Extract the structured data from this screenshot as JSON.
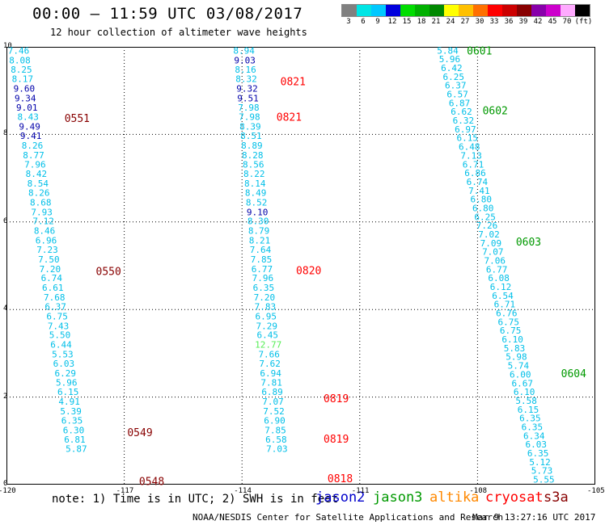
{
  "title": "00:00 – 11:59 UTC 03/08/2017",
  "subtitle": "12 hour collection of altimeter wave heights",
  "color_scale": {
    "labels": [
      "3",
      "6",
      "9",
      "12",
      "15",
      "18",
      "21",
      "24",
      "27",
      "30",
      "33",
      "36",
      "39",
      "42",
      "45",
      "70",
      "(ft)"
    ],
    "colors": [
      "#808080",
      "#00e5e5",
      "#00c8ff",
      "#0000dd",
      "#00dd00",
      "#00b000",
      "#008800",
      "#ffff00",
      "#ffc000",
      "#ff7000",
      "#ff0000",
      "#cc0000",
      "#880000",
      "#8800aa",
      "#cc00cc",
      "#ffaaff",
      "#000000"
    ]
  },
  "note": "note: 1) Time is in UTC; 2) SWH is in feet",
  "missions": [
    {
      "name": "jason2",
      "color": "#0000cc"
    },
    {
      "name": "jason3",
      "color": "#009900"
    },
    {
      "name": "altika",
      "color": "#ff8800"
    },
    {
      "name": "cryosat",
      "color": "#ff0000"
    },
    {
      "name": "s3a",
      "color": "#880000"
    }
  ],
  "credit": "NOAA/NESDIS Center for Satellite Applications and Research",
  "timestamp": "Mar  9 13:27:16 UTC 2017",
  "chart_data": {
    "type": "scatter",
    "title": "00:00 – 11:59 UTC 03/08/2017",
    "subtitle": "12 hour collection of altimeter wave heights",
    "xlabel": "",
    "ylabel": "",
    "xlim": [
      -120,
      -105
    ],
    "ylim": [
      0,
      10
    ],
    "x_ticks": [
      "-120",
      "-117",
      "-114",
      "-111",
      "-108",
      "-105"
    ],
    "y_ticks": [
      "0",
      "2",
      "4",
      "6",
      "8",
      "10"
    ],
    "grid": true,
    "units": "ft",
    "tracks": [
      {
        "color": "#880000",
        "points": [
          {
            "lon": -119.69,
            "lat": 9.92,
            "v": "7.46"
          },
          {
            "lon": -119.66,
            "lat": 9.7,
            "v": "8.08"
          },
          {
            "lon": -119.62,
            "lat": 9.48,
            "v": "8.25"
          },
          {
            "lon": -119.59,
            "lat": 9.27,
            "v": "8.17"
          },
          {
            "lon": -119.55,
            "lat": 9.05,
            "v": "9.60"
          },
          {
            "lon": -119.52,
            "lat": 8.83,
            "v": "9.34"
          },
          {
            "lon": -119.48,
            "lat": 8.62,
            "v": "9.01"
          },
          {
            "lon": -119.45,
            "lat": 8.4,
            "v": "8.43"
          },
          {
            "lon": -119.41,
            "lat": 8.18,
            "v": "9.49"
          },
          {
            "lon": -119.38,
            "lat": 7.97,
            "v": "9.41"
          },
          {
            "lon": -119.34,
            "lat": 7.75,
            "v": "8.26"
          },
          {
            "lon": -119.31,
            "lat": 7.53,
            "v": "8.77"
          },
          {
            "lon": -119.27,
            "lat": 7.32,
            "v": "7.96"
          },
          {
            "lon": -119.24,
            "lat": 7.1,
            "v": "8.42"
          },
          {
            "lon": -119.2,
            "lat": 6.88,
            "v": "8.54"
          },
          {
            "lon": -119.17,
            "lat": 6.67,
            "v": "8.26"
          },
          {
            "lon": -119.13,
            "lat": 6.45,
            "v": "8.68"
          },
          {
            "lon": -119.1,
            "lat": 6.23,
            "v": "7.93"
          },
          {
            "lon": -119.06,
            "lat": 6.02,
            "v": "7.12"
          },
          {
            "lon": -119.03,
            "lat": 5.8,
            "v": "8.46"
          },
          {
            "lon": -118.99,
            "lat": 5.58,
            "v": "6.96"
          },
          {
            "lon": -118.96,
            "lat": 5.37,
            "v": "7.23"
          },
          {
            "lon": -118.92,
            "lat": 5.15,
            "v": "7.50"
          },
          {
            "lon": -118.89,
            "lat": 4.93,
            "v": "7.20"
          },
          {
            "lon": -118.85,
            "lat": 4.72,
            "v": "6.74"
          },
          {
            "lon": -118.82,
            "lat": 4.5,
            "v": "6.61"
          },
          {
            "lon": -118.78,
            "lat": 4.28,
            "v": "7.68"
          },
          {
            "lon": -118.75,
            "lat": 4.07,
            "v": "6.37"
          },
          {
            "lon": -118.71,
            "lat": 3.85,
            "v": "6.75"
          },
          {
            "lon": -118.68,
            "lat": 3.63,
            "v": "7.43"
          },
          {
            "lon": -118.64,
            "lat": 3.42,
            "v": "5.50"
          },
          {
            "lon": -118.61,
            "lat": 3.2,
            "v": "6.44"
          },
          {
            "lon": -118.57,
            "lat": 2.98,
            "v": "5.53"
          },
          {
            "lon": -118.54,
            "lat": 2.77,
            "v": "6.03"
          },
          {
            "lon": -118.5,
            "lat": 2.55,
            "v": "6.29"
          },
          {
            "lon": -118.47,
            "lat": 2.33,
            "v": "5.96"
          },
          {
            "lon": -118.43,
            "lat": 2.12,
            "v": "6.15"
          },
          {
            "lon": -118.4,
            "lat": 1.9,
            "v": "4.91"
          },
          {
            "lon": -118.36,
            "lat": 1.68,
            "v": "5.39"
          },
          {
            "lon": -118.33,
            "lat": 1.47,
            "v": "6.35"
          },
          {
            "lon": -118.29,
            "lat": 1.25,
            "v": "6.30"
          },
          {
            "lon": -118.26,
            "lat": 1.03,
            "v": "6.81"
          },
          {
            "lon": -118.22,
            "lat": 0.82,
            "v": "5.87"
          }
        ],
        "time_labels": [
          {
            "lon": -118.2,
            "lat": 8.38,
            "text": "0551"
          },
          {
            "lon": -117.4,
            "lat": 4.88,
            "text": "0550"
          },
          {
            "lon": -116.6,
            "lat": 1.2,
            "text": "0549"
          },
          {
            "lon": -116.3,
            "lat": 0.08,
            "text": "0548"
          }
        ]
      },
      {
        "color": "#ff0000",
        "points": [
          {
            "lon": -113.95,
            "lat": 9.92,
            "v": "8.94"
          },
          {
            "lon": -113.93,
            "lat": 9.7,
            "v": "9.03"
          },
          {
            "lon": -113.91,
            "lat": 9.48,
            "v": "8.16"
          },
          {
            "lon": -113.89,
            "lat": 9.27,
            "v": "8.32"
          },
          {
            "lon": -113.87,
            "lat": 9.05,
            "v": "9.32"
          },
          {
            "lon": -113.85,
            "lat": 8.83,
            "v": "9.51"
          },
          {
            "lon": -113.83,
            "lat": 8.62,
            "v": "7.98"
          },
          {
            "lon": -113.81,
            "lat": 8.4,
            "v": "7.98"
          },
          {
            "lon": -113.79,
            "lat": 8.18,
            "v": "8.39"
          },
          {
            "lon": -113.77,
            "lat": 7.97,
            "v": "8.51"
          },
          {
            "lon": -113.75,
            "lat": 7.75,
            "v": "8.89"
          },
          {
            "lon": -113.73,
            "lat": 7.53,
            "v": "8.28"
          },
          {
            "lon": -113.71,
            "lat": 7.32,
            "v": "8.56"
          },
          {
            "lon": -113.69,
            "lat": 7.1,
            "v": "8.22"
          },
          {
            "lon": -113.67,
            "lat": 6.88,
            "v": "8.14"
          },
          {
            "lon": -113.65,
            "lat": 6.67,
            "v": "8.49"
          },
          {
            "lon": -113.63,
            "lat": 6.45,
            "v": "8.52"
          },
          {
            "lon": -113.61,
            "lat": 6.23,
            "v": "9.10"
          },
          {
            "lon": -113.59,
            "lat": 6.02,
            "v": "8.30"
          },
          {
            "lon": -113.57,
            "lat": 5.8,
            "v": "8.79"
          },
          {
            "lon": -113.55,
            "lat": 5.58,
            "v": "8.21"
          },
          {
            "lon": -113.53,
            "lat": 5.37,
            "v": "7.64"
          },
          {
            "lon": -113.51,
            "lat": 5.15,
            "v": "7.85"
          },
          {
            "lon": -113.49,
            "lat": 4.93,
            "v": "6.77"
          },
          {
            "lon": -113.47,
            "lat": 4.72,
            "v": "7.96"
          },
          {
            "lon": -113.45,
            "lat": 4.5,
            "v": "6.35"
          },
          {
            "lon": -113.43,
            "lat": 4.28,
            "v": "7.20"
          },
          {
            "lon": -113.41,
            "lat": 4.07,
            "v": "7.83"
          },
          {
            "lon": -113.39,
            "lat": 3.85,
            "v": "6.95"
          },
          {
            "lon": -113.37,
            "lat": 3.63,
            "v": "7.29"
          },
          {
            "lon": -113.35,
            "lat": 3.42,
            "v": "6.45"
          },
          {
            "lon": -113.33,
            "lat": 3.2,
            "v": "12.77",
            "c": "#55ee55"
          },
          {
            "lon": -113.31,
            "lat": 2.98,
            "v": "7.66"
          },
          {
            "lon": -113.29,
            "lat": 2.77,
            "v": "7.62"
          },
          {
            "lon": -113.27,
            "lat": 2.55,
            "v": "6.94"
          },
          {
            "lon": -113.25,
            "lat": 2.33,
            "v": "7.81"
          },
          {
            "lon": -113.23,
            "lat": 2.12,
            "v": "6.89"
          },
          {
            "lon": -113.21,
            "lat": 1.9,
            "v": "7.07"
          },
          {
            "lon": -113.19,
            "lat": 1.68,
            "v": "7.52"
          },
          {
            "lon": -113.17,
            "lat": 1.47,
            "v": "6.90"
          },
          {
            "lon": -113.15,
            "lat": 1.25,
            "v": "7.85"
          },
          {
            "lon": -113.13,
            "lat": 1.03,
            "v": "6.58"
          },
          {
            "lon": -113.11,
            "lat": 0.82,
            "v": "7.03"
          }
        ],
        "time_labels": [
          {
            "lon": -112.7,
            "lat": 9.22,
            "text": "0821"
          },
          {
            "lon": -112.8,
            "lat": 8.4,
            "text": "0821"
          },
          {
            "lon": -112.3,
            "lat": 4.9,
            "text": "0820"
          },
          {
            "lon": -111.6,
            "lat": 1.97,
            "text": "0819"
          },
          {
            "lon": -111.6,
            "lat": 1.05,
            "text": "0819"
          },
          {
            "lon": -111.5,
            "lat": 0.15,
            "text": "0818"
          }
        ]
      },
      {
        "color": "#009900",
        "points": [
          {
            "lon": -108.76,
            "lat": 9.92,
            "v": "5.84"
          },
          {
            "lon": -108.71,
            "lat": 9.72,
            "v": "5.96"
          },
          {
            "lon": -108.66,
            "lat": 9.52,
            "v": "6.42"
          },
          {
            "lon": -108.61,
            "lat": 9.32,
            "v": "6.25"
          },
          {
            "lon": -108.56,
            "lat": 9.12,
            "v": "6.37"
          },
          {
            "lon": -108.51,
            "lat": 8.92,
            "v": "6.57"
          },
          {
            "lon": -108.46,
            "lat": 8.72,
            "v": "6.87"
          },
          {
            "lon": -108.41,
            "lat": 8.52,
            "v": "6.62"
          },
          {
            "lon": -108.36,
            "lat": 8.32,
            "v": "6.32"
          },
          {
            "lon": -108.31,
            "lat": 8.12,
            "v": "6.97"
          },
          {
            "lon": -108.26,
            "lat": 7.92,
            "v": "6.15"
          },
          {
            "lon": -108.21,
            "lat": 7.72,
            "v": "6.48"
          },
          {
            "lon": -108.16,
            "lat": 7.52,
            "v": "7.13"
          },
          {
            "lon": -108.11,
            "lat": 7.32,
            "v": "6.71"
          },
          {
            "lon": -108.06,
            "lat": 7.12,
            "v": "6.86"
          },
          {
            "lon": -108.01,
            "lat": 6.92,
            "v": "6.74"
          },
          {
            "lon": -107.96,
            "lat": 6.72,
            "v": "7.41"
          },
          {
            "lon": -107.91,
            "lat": 6.52,
            "v": "6.80"
          },
          {
            "lon": -107.86,
            "lat": 6.32,
            "v": "6.80"
          },
          {
            "lon": -107.81,
            "lat": 6.12,
            "v": "6.25"
          },
          {
            "lon": -107.76,
            "lat": 5.92,
            "v": "7.26"
          },
          {
            "lon": -107.71,
            "lat": 5.72,
            "v": "7.02"
          },
          {
            "lon": -107.66,
            "lat": 5.52,
            "v": "7.09"
          },
          {
            "lon": -107.61,
            "lat": 5.32,
            "v": "7.07"
          },
          {
            "lon": -107.56,
            "lat": 5.12,
            "v": "7.06"
          },
          {
            "lon": -107.51,
            "lat": 4.92,
            "v": "6.77"
          },
          {
            "lon": -107.46,
            "lat": 4.72,
            "v": "6.08"
          },
          {
            "lon": -107.41,
            "lat": 4.52,
            "v": "6.12"
          },
          {
            "lon": -107.36,
            "lat": 4.32,
            "v": "6.54"
          },
          {
            "lon": -107.31,
            "lat": 4.12,
            "v": "6.71"
          },
          {
            "lon": -107.26,
            "lat": 3.92,
            "v": "6.76"
          },
          {
            "lon": -107.21,
            "lat": 3.72,
            "v": "6.75"
          },
          {
            "lon": -107.16,
            "lat": 3.52,
            "v": "6.75"
          },
          {
            "lon": -107.11,
            "lat": 3.32,
            "v": "6.10"
          },
          {
            "lon": -107.06,
            "lat": 3.12,
            "v": "5.83"
          },
          {
            "lon": -107.01,
            "lat": 2.92,
            "v": "5.98"
          },
          {
            "lon": -106.96,
            "lat": 2.72,
            "v": "5.74"
          },
          {
            "lon": -106.91,
            "lat": 2.52,
            "v": "6.00"
          },
          {
            "lon": -106.86,
            "lat": 2.32,
            "v": "6.67"
          },
          {
            "lon": -106.81,
            "lat": 2.12,
            "v": "6.10"
          },
          {
            "lon": -106.76,
            "lat": 1.92,
            "v": "5.58"
          },
          {
            "lon": -106.71,
            "lat": 1.72,
            "v": "6.15"
          },
          {
            "lon": -106.66,
            "lat": 1.52,
            "v": "6.35"
          },
          {
            "lon": -106.61,
            "lat": 1.32,
            "v": "6.35"
          },
          {
            "lon": -106.56,
            "lat": 1.12,
            "v": "6.34"
          },
          {
            "lon": -106.51,
            "lat": 0.92,
            "v": "6.03"
          },
          {
            "lon": -106.46,
            "lat": 0.72,
            "v": "6.35"
          },
          {
            "lon": -106.41,
            "lat": 0.52,
            "v": "5.12"
          },
          {
            "lon": -106.36,
            "lat": 0.32,
            "v": "5.73"
          },
          {
            "lon": -106.31,
            "lat": 0.12,
            "v": "5.55"
          }
        ],
        "time_labels": [
          {
            "lon": -107.95,
            "lat": 9.92,
            "text": "0601"
          },
          {
            "lon": -107.55,
            "lat": 8.55,
            "text": "0602"
          },
          {
            "lon": -106.7,
            "lat": 5.55,
            "text": "0603"
          },
          {
            "lon": -105.55,
            "lat": 2.55,
            "text": "0604"
          }
        ]
      }
    ]
  }
}
